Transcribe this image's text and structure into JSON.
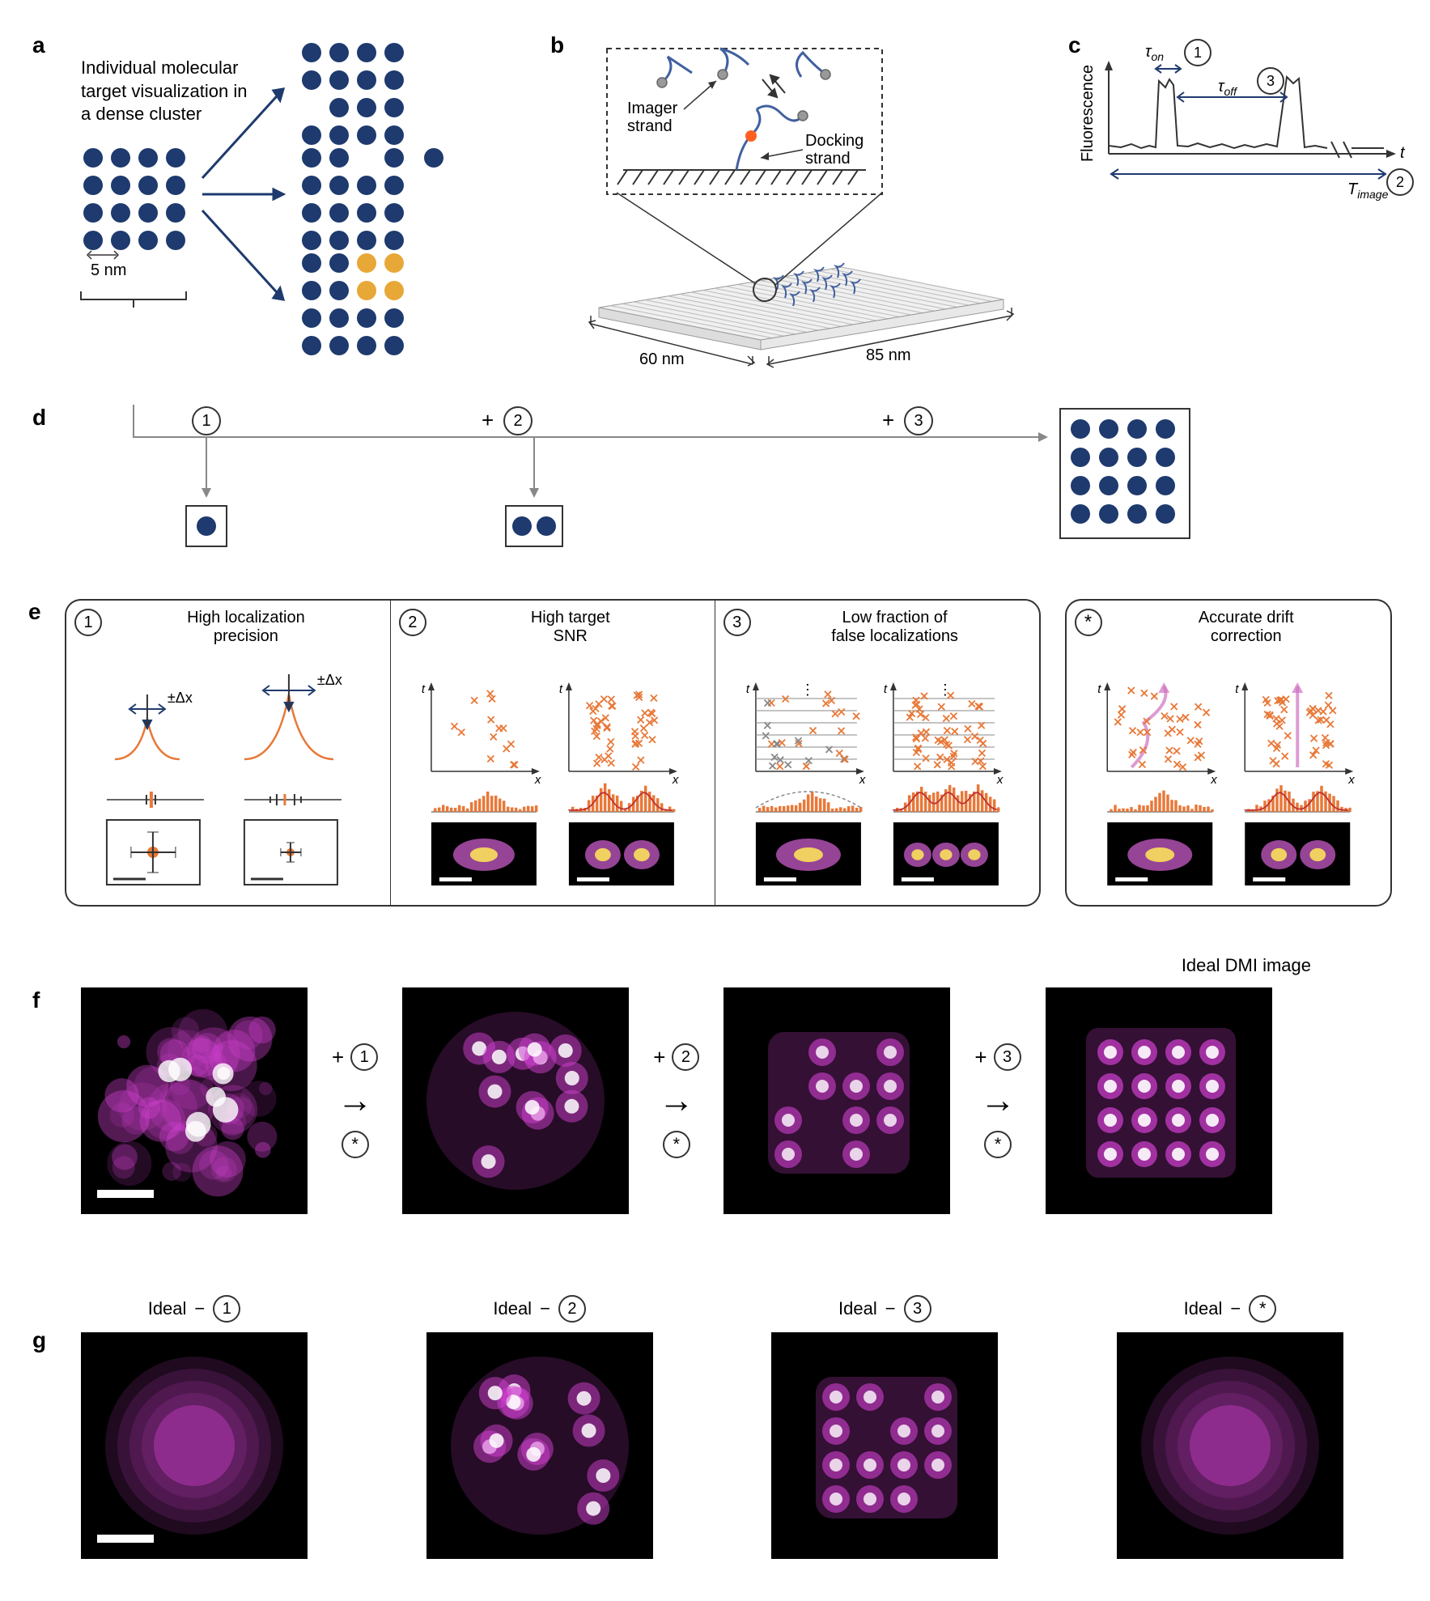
{
  "colors": {
    "dot_primary": "#1e3a6e",
    "dot_accent": "#e8a838",
    "arrow": "#1e3a6e",
    "curve_orange": "#e87838",
    "cross_orange": "#e87838",
    "drift_line": "#d070c0",
    "blob_outer": "#b050b0",
    "blob_inner": "#f0d060",
    "micro_magenta": "#d040d0",
    "text": "#333333",
    "line": "#333333"
  },
  "panelA": {
    "label": "a",
    "caption": "Individual molecular\ntarget visualization in\na dense cluster",
    "scale_label": "5 nm",
    "dot_radius": 12,
    "dot_spacing": 34,
    "grid_rows": 4,
    "grid_cols": 4,
    "variants": {
      "top_missing": [
        [
          2,
          0
        ]
      ],
      "mid_missing": [
        [
          0,
          2
        ]
      ],
      "bottom_accent": [
        [
          0,
          2
        ],
        [
          0,
          3
        ],
        [
          1,
          2
        ],
        [
          1,
          3
        ]
      ]
    }
  },
  "panelB": {
    "label": "b",
    "imager_label": "Imager\nstrand",
    "docking_label": "Docking\nstrand",
    "width_label": "60 nm",
    "length_label": "85 nm"
  },
  "panelC": {
    "label": "c",
    "y_axis": "Fluorescence",
    "x_axis": "t",
    "tau_on": "τ",
    "tau_on_sub": "on",
    "tau_off": "τ",
    "tau_off_sub": "off",
    "T_image": "T",
    "T_image_sub": "image",
    "circled1": "1",
    "circled2": "2",
    "circled3": "3"
  },
  "panelD": {
    "label": "d",
    "circled1": "1",
    "circled2": "2",
    "circled3": "3",
    "plus": "+"
  },
  "panelE": {
    "label": "e",
    "cell1": {
      "num": "1",
      "title": "High localization\nprecision",
      "delta_x": "±Δx"
    },
    "cell2": {
      "num": "2",
      "title": "High target\nSNR",
      "x": "x",
      "t": "t"
    },
    "cell3": {
      "num": "3",
      "title": "Low fraction of\nfalse localizations",
      "x": "x",
      "t": "t"
    },
    "cell4": {
      "num": "*",
      "title": "Accurate drift\ncorrection",
      "x": "x",
      "t": "t"
    }
  },
  "panelF": {
    "label": "f",
    "plus": "+",
    "ideal_label": "Ideal DMI image",
    "steps": [
      "1",
      "2",
      "3"
    ],
    "star": "*"
  },
  "panelG": {
    "label": "g",
    "ideal": "Ideal",
    "minus": "−",
    "items": [
      "1",
      "2",
      "3",
      "*"
    ]
  }
}
